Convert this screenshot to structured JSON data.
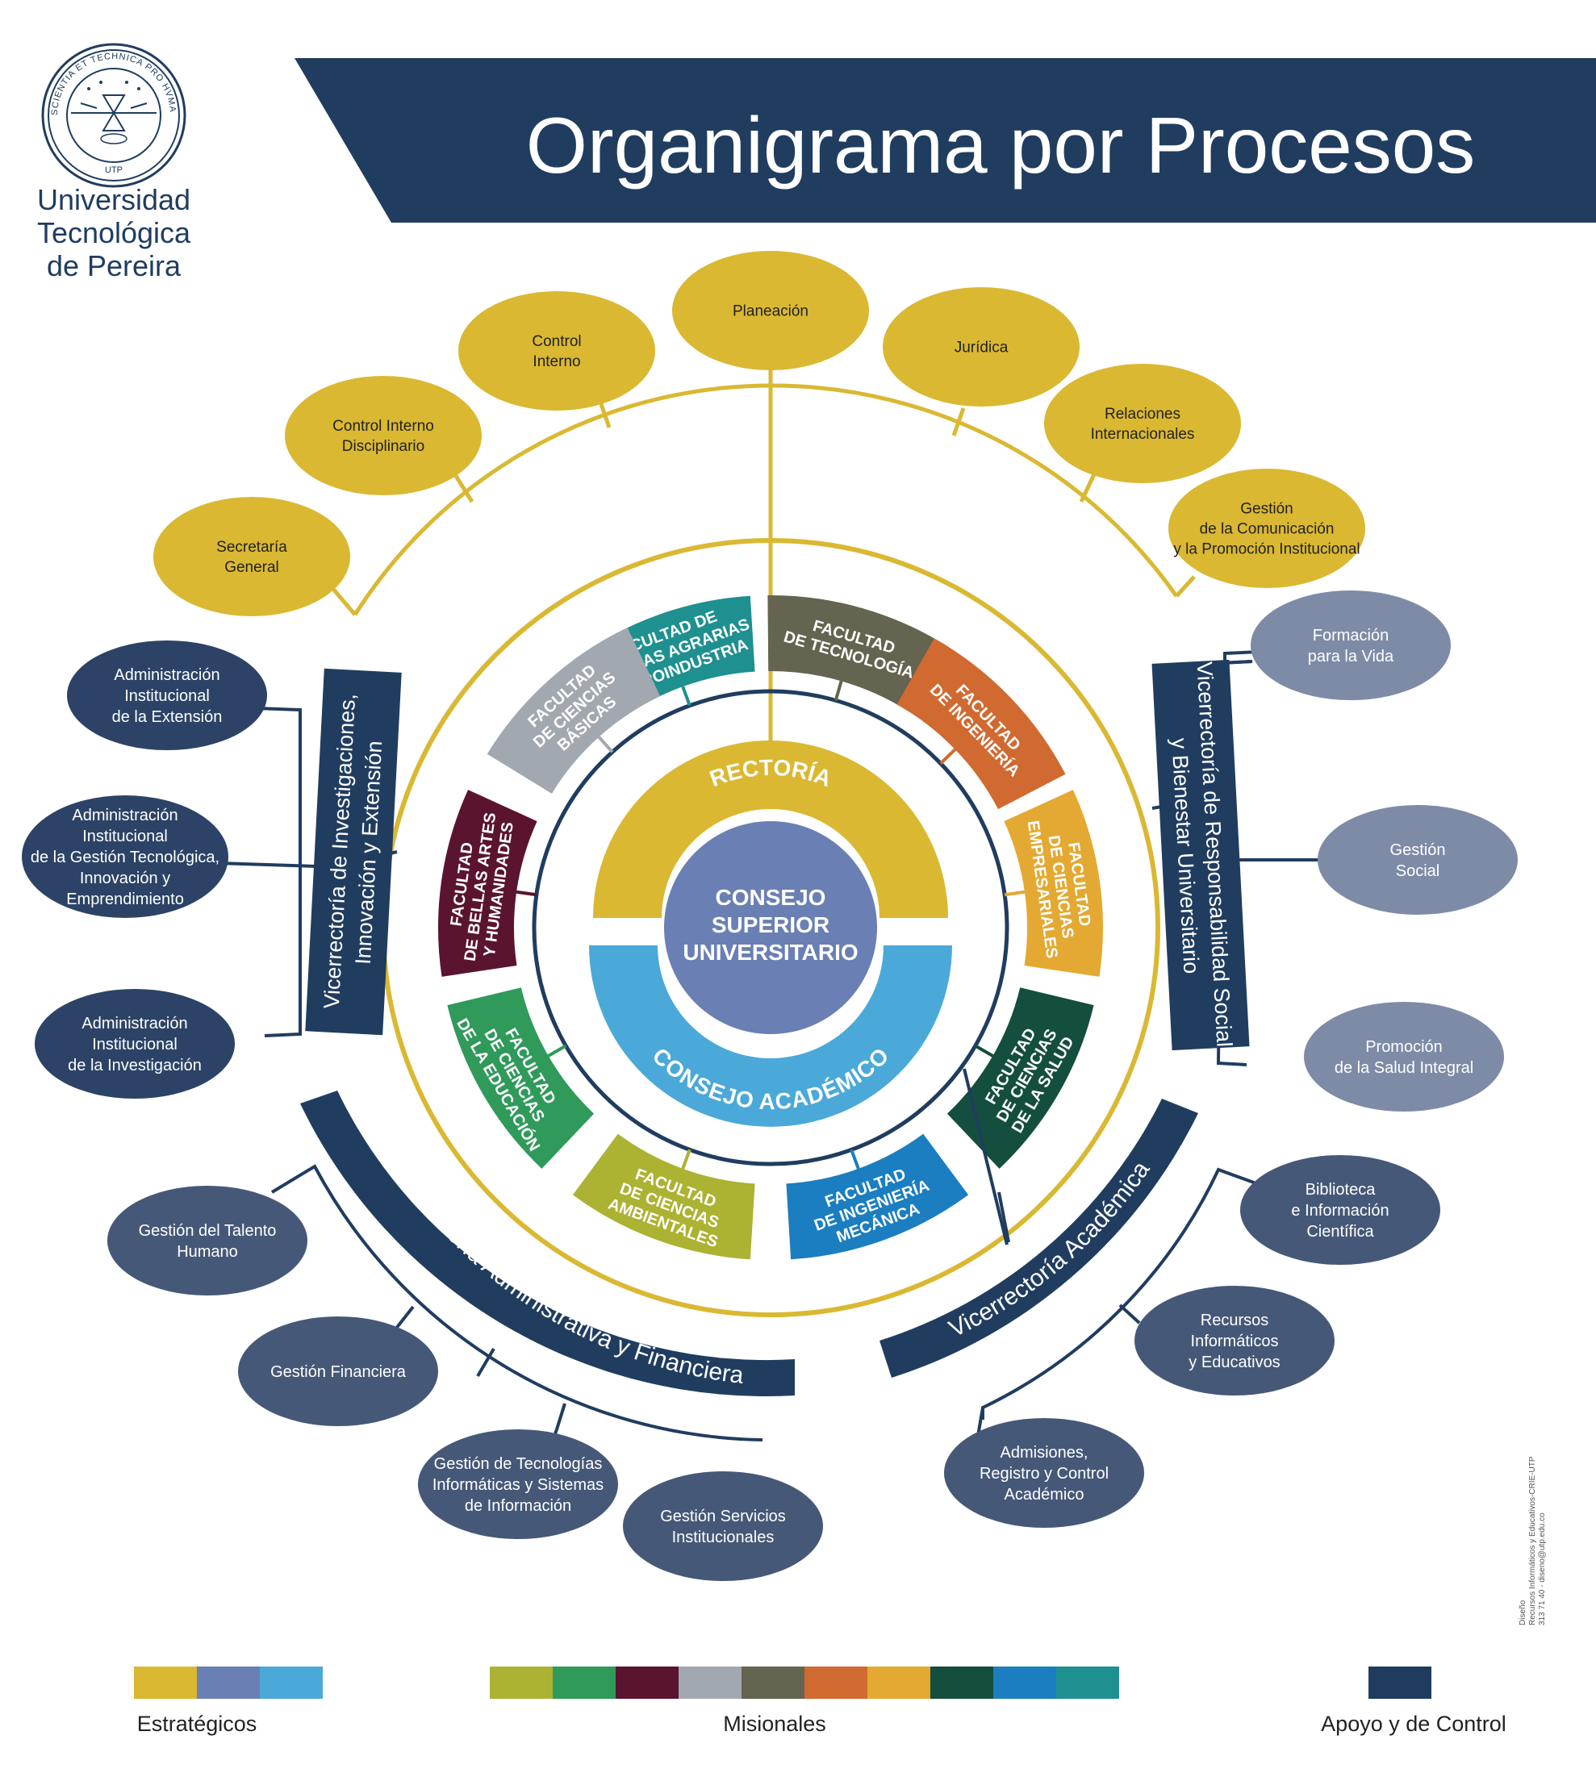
{
  "university": {
    "lines": [
      "Universidad",
      "Tecnológica",
      "de Pereira"
    ],
    "seal_text": "SCIENTIA ET TECHNICA PRO HVMANITATE SVB LIBERTATIS TVTELA",
    "seal_acronym": "UTP"
  },
  "header": {
    "title": "Organigrama por Procesos"
  },
  "center": {
    "consejo_superior": [
      "CONSEJO",
      "SUPERIOR",
      "UNIVERSITARIO"
    ],
    "rectoria": "RECTORÍA",
    "consejo_academico": "CONSEJO ACADÉMICO"
  },
  "faculties": [
    {
      "lines": [
        "FACULTAD DE",
        "CIENCIAS AGRARIAS",
        "Y AGROINDUSTRIA"
      ],
      "color": "#1E9090"
    },
    {
      "lines": [
        "FACULTAD",
        "DE TECNOLOGÍA"
      ],
      "color": "#646450"
    },
    {
      "lines": [
        "FACULTAD",
        "DE INGENIERÍA"
      ],
      "color": "#D06A30"
    },
    {
      "lines": [
        "FACULTAD",
        "DE CIENCIAS",
        "EMPRESARIALES"
      ],
      "color": "#E4A932"
    },
    {
      "lines": [
        "FACULTAD",
        "DE CIENCIAS",
        "DE LA SALUD"
      ],
      "color": "#144E3E"
    },
    {
      "lines": [
        "FACULTAD",
        "DE INGENIERÍA",
        "MECÁNICA"
      ],
      "color": "#1A7EC0"
    },
    {
      "lines": [
        "FACULTAD",
        "DE CIENCIAS",
        "AMBIENTALES"
      ],
      "color": "#ACB232"
    },
    {
      "lines": [
        "FACULTAD",
        "DE CIENCIAS",
        "DE LA EDUCACIÓN"
      ],
      "color": "#2F9A5A"
    },
    {
      "lines": [
        "FACULTAD",
        "DE BELLAS ARTES",
        "Y HUMANIDADES"
      ],
      "color": "#5A1430"
    },
    {
      "lines": [
        "FACULTAD",
        "DE CIENCIAS",
        "BÁSICAS"
      ],
      "color": "#A2A8B0"
    }
  ],
  "strategic_units": [
    {
      "lines": [
        "Secretaría",
        "General"
      ]
    },
    {
      "lines": [
        "Control Interno",
        "Disciplinario"
      ]
    },
    {
      "lines": [
        "Control",
        "Interno"
      ]
    },
    {
      "lines": [
        "Planeación"
      ]
    },
    {
      "lines": [
        "Jurídica"
      ]
    },
    {
      "lines": [
        "Relaciones",
        "Internacionales"
      ]
    },
    {
      "lines": [
        "Gestión",
        "de la Comunicación",
        "y la Promoción Institucional"
      ]
    }
  ],
  "vicerrectorias": {
    "investigaciones": {
      "lines": [
        "Vicerrectoría de Investigaciones,",
        "Innovación y Extensión"
      ],
      "units": [
        {
          "lines": [
            "Administración",
            "Institucional",
            "de la Extensión"
          ]
        },
        {
          "lines": [
            "Administración",
            "Institucional",
            "de la Gestión Tecnológica,",
            "Innovación y",
            "Emprendimiento"
          ]
        },
        {
          "lines": [
            "Administración",
            "Institucional",
            "de la Investigación"
          ]
        }
      ]
    },
    "responsabilidad_social": {
      "lines": [
        "Vicerrectoría de Responsabilidad Social",
        "y Bienestar Universitario"
      ],
      "units": [
        {
          "lines": [
            "Formación",
            "para la Vida"
          ]
        },
        {
          "lines": [
            "Gestión",
            "Social"
          ]
        },
        {
          "lines": [
            "Promoción",
            "de la Salud Integral"
          ]
        }
      ]
    },
    "administrativa": {
      "label": "Vicerrectoría Administrativa y Financiera",
      "units": [
        {
          "lines": [
            "Gestión del Talento",
            "Humano"
          ]
        },
        {
          "lines": [
            "Gestión Financiera"
          ]
        },
        {
          "lines": [
            "Gestión de Tecnologías",
            "Informáticas y Sistemas",
            "de Información"
          ]
        },
        {
          "lines": [
            "Gestión Servicios",
            "Institucionales"
          ]
        }
      ]
    },
    "academica": {
      "label": "Vicerrectoría Académica",
      "units": [
        {
          "lines": [
            "Biblioteca",
            "e Información",
            "Científica"
          ]
        },
        {
          "lines": [
            "Recursos",
            "Informáticos",
            "y Educativos"
          ]
        },
        {
          "lines": [
            "Admisiones,",
            "Registro y Control",
            "Académico"
          ]
        }
      ]
    }
  },
  "credit": {
    "lines": [
      "Diseño",
      "Recursos Informáticos y Educativos-CRIE-UTP",
      "313 71 40 - diseno@utp.edu.co"
    ]
  },
  "legend": {
    "strategic": {
      "label": "Estratégicos",
      "colors": [
        "#DAB832",
        "#6A7FB4",
        "#4AA9D8"
      ]
    },
    "missional": {
      "label": "Misionales",
      "colors": [
        "#ACB232",
        "#2F9A5A",
        "#5A1430",
        "#A2A8B0",
        "#646450",
        "#D06A30",
        "#E4A932",
        "#144E3E",
        "#1A7EC0",
        "#1E9090"
      ]
    },
    "support": {
      "label": "Apoyo y de Control",
      "colors": [
        "#1F3B5E"
      ]
    }
  },
  "colors": {
    "navy": "#203D60",
    "gold": "#DAB832",
    "strategic_bubble": "#DAB832",
    "social_bubble": "#7E8BA7",
    "support_bubble": "#465878",
    "investig_bubble": "#2C4367",
    "consejo_superior": "#6A7FB4",
    "consejo_academico": "#4AA9D8"
  }
}
